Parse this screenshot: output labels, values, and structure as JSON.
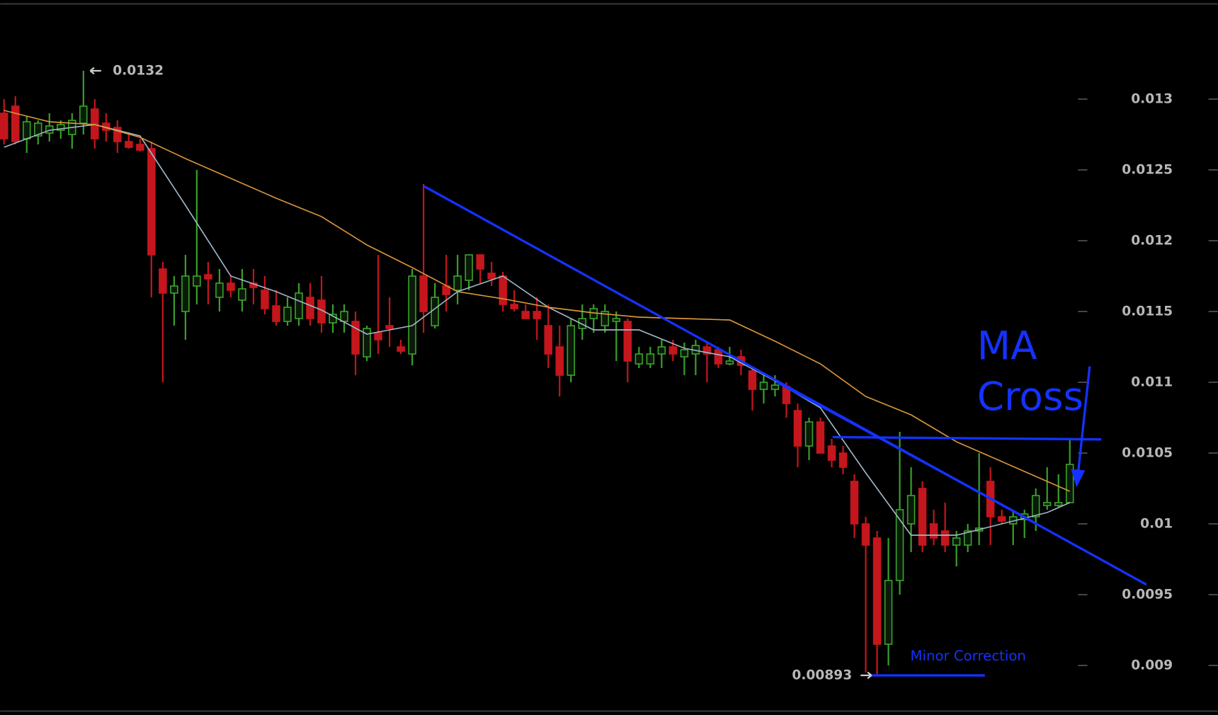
{
  "chart_data": {
    "type": "candlestick",
    "up_color": "#3aa02a",
    "down_color": "#c4161c",
    "open": [
      0.0129,
      0.01295,
      0.01272,
      0.01274,
      0.01276,
      0.01278,
      0.01275,
      0.01283,
      0.01293,
      0.01283,
      0.0128,
      0.0127,
      0.01268,
      0.01265,
      0.0118,
      0.01163,
      0.0115,
      0.01168,
      0.01176,
      0.0116,
      0.0117,
      0.01158,
      0.0117,
      0.01165,
      0.01154,
      0.01143,
      0.01145,
      0.0116,
      0.01158,
      0.01142,
      0.01143,
      0.01143,
      0.01118,
      0.01135,
      0.0114,
      0.01125,
      0.0112,
      0.01175,
      0.0114,
      0.01168,
      0.01165,
      0.01172,
      0.0119,
      0.01177,
      0.01175,
      0.01155,
      0.0115,
      0.0115,
      0.0114,
      0.01125,
      0.01105,
      0.01138,
      0.01145,
      0.0114,
      0.01143,
      0.01143,
      0.01113,
      0.01113,
      0.0112,
      0.01125,
      0.01118,
      0.0112,
      0.01125,
      0.01123,
      0.01113,
      0.01118,
      0.01108,
      0.01095,
      0.01095,
      0.01097,
      0.0108,
      0.01055,
      0.01072,
      0.01055,
      0.0105,
      0.0103,
      0.01,
      0.0099,
      0.00915,
      0.0096,
      0.01,
      0.01025,
      0.01,
      0.00995,
      0.00985,
      0.00985,
      0.00995,
      0.0103,
      0.01005,
      0.01,
      0.01003,
      0.01005,
      0.01013,
      0.01013,
      0.01015
    ],
    "high": [
      0.013,
      0.01302,
      0.01288,
      0.01285,
      0.0129,
      0.01285,
      0.0129,
      0.0132,
      0.013,
      0.0129,
      0.01285,
      0.01275,
      0.01272,
      0.0127,
      0.01185,
      0.01175,
      0.0119,
      0.0125,
      0.01185,
      0.0118,
      0.01175,
      0.0118,
      0.0118,
      0.01175,
      0.01165,
      0.0116,
      0.0117,
      0.0117,
      0.01175,
      0.01155,
      0.01155,
      0.0115,
      0.0114,
      0.0119,
      0.0116,
      0.0113,
      0.0118,
      0.0124,
      0.0117,
      0.0119,
      0.0119,
      0.0119,
      0.0119,
      0.01185,
      0.01178,
      0.01165,
      0.01155,
      0.0116,
      0.01155,
      0.0114,
      0.01145,
      0.01155,
      0.01155,
      0.01155,
      0.0115,
      0.01145,
      0.01125,
      0.01125,
      0.0113,
      0.0113,
      0.01128,
      0.0113,
      0.01128,
      0.01125,
      0.01125,
      0.01123,
      0.0111,
      0.01105,
      0.01105,
      0.011,
      0.01085,
      0.01075,
      0.01075,
      0.0106,
      0.01055,
      0.01035,
      0.01005,
      0.00995,
      0.0099,
      0.01065,
      0.0104,
      0.0103,
      0.0101,
      0.01015,
      0.00995,
      0.01,
      0.0105,
      0.0104,
      0.0101,
      0.0101,
      0.0101,
      0.01025,
      0.0104,
      0.01035,
      0.0106
    ],
    "low": [
      0.01268,
      0.01268,
      0.01262,
      0.01268,
      0.0127,
      0.01272,
      0.01265,
      0.01275,
      0.01265,
      0.0127,
      0.01262,
      0.01265,
      0.01263,
      0.0116,
      0.011,
      0.0114,
      0.0113,
      0.01155,
      0.01155,
      0.0115,
      0.0116,
      0.0115,
      0.01155,
      0.01148,
      0.0114,
      0.0114,
      0.0114,
      0.0114,
      0.01135,
      0.01135,
      0.01135,
      0.01105,
      0.01115,
      0.0112,
      0.01125,
      0.0112,
      0.01112,
      0.01135,
      0.01138,
      0.0115,
      0.01155,
      0.01165,
      0.0117,
      0.01168,
      0.0115,
      0.0115,
      0.01145,
      0.0113,
      0.0111,
      0.0109,
      0.011,
      0.0113,
      0.01135,
      0.01135,
      0.01115,
      0.011,
      0.0111,
      0.0111,
      0.0111,
      0.01115,
      0.01105,
      0.01105,
      0.011,
      0.0111,
      0.01112,
      0.01105,
      0.0108,
      0.01085,
      0.0109,
      0.01075,
      0.0104,
      0.01045,
      0.0105,
      0.0104,
      0.01035,
      0.0099,
      0.00895,
      0.00893,
      0.009,
      0.0095,
      0.0098,
      0.0098,
      0.00985,
      0.0098,
      0.0097,
      0.0098,
      0.00985,
      0.00985,
      0.01,
      0.00985,
      0.0099,
      0.00995,
      0.0101,
      0.01012,
      0.01015
    ],
    "close": [
      0.01272,
      0.0127,
      0.01284,
      0.01283,
      0.01281,
      0.01282,
      0.01285,
      0.01295,
      0.01272,
      0.01278,
      0.0127,
      0.01266,
      0.01264,
      0.0119,
      0.01163,
      0.01168,
      0.01175,
      0.01175,
      0.01173,
      0.0117,
      0.01165,
      0.01166,
      0.01167,
      0.01152,
      0.01143,
      0.01153,
      0.01163,
      0.01145,
      0.01142,
      0.01148,
      0.0115,
      0.0112,
      0.01138,
      0.0113,
      0.01138,
      0.01122,
      0.01175,
      0.0115,
      0.0116,
      0.01162,
      0.01175,
      0.0119,
      0.0118,
      0.01173,
      0.01155,
      0.01152,
      0.01145,
      0.01145,
      0.0112,
      0.01105,
      0.0114,
      0.01145,
      0.01152,
      0.0115,
      0.01145,
      0.01115,
      0.0112,
      0.0112,
      0.01125,
      0.0112,
      0.01123,
      0.01126,
      0.0112,
      0.01113,
      0.01115,
      0.01112,
      0.01095,
      0.011,
      0.01098,
      0.01085,
      0.01055,
      0.01072,
      0.0105,
      0.01045,
      0.0104,
      0.01,
      0.00985,
      0.00915,
      0.0096,
      0.0101,
      0.0102,
      0.00985,
      0.0099,
      0.00985,
      0.0099,
      0.00995,
      0.00997,
      0.01005,
      0.01002,
      0.01005,
      0.01007,
      0.0102,
      0.01015,
      0.01015,
      0.01042
    ],
    "moving_averages": [
      {
        "color": "#9fb6c8",
        "x": [
          0,
          4,
          8,
          12,
          16,
          20,
          24,
          28,
          32,
          36,
          40,
          44,
          48,
          52,
          56,
          60,
          64,
          68,
          72,
          76,
          80,
          84,
          88,
          92,
          94
        ],
        "values": [
          0.01266,
          0.01278,
          0.01282,
          0.01274,
          0.01225,
          0.01175,
          0.01164,
          0.01151,
          0.01134,
          0.0114,
          0.01164,
          0.01175,
          0.01153,
          0.01137,
          0.01137,
          0.01124,
          0.01118,
          0.01101,
          0.01082,
          0.01036,
          0.00992,
          0.00992,
          0.01,
          0.01008,
          0.01015
        ]
      },
      {
        "color": "#d8953a",
        "x": [
          0,
          4,
          8,
          12,
          16,
          20,
          24,
          28,
          32,
          36,
          40,
          44,
          48,
          52,
          56,
          60,
          64,
          68,
          72,
          76,
          80,
          84,
          88,
          92,
          94
        ],
        "values": [
          0.01292,
          0.01284,
          0.01282,
          0.01273,
          0.01258,
          0.01244,
          0.0123,
          0.01217,
          0.01197,
          0.01181,
          0.01164,
          0.01159,
          0.01153,
          0.01149,
          0.01146,
          0.01145,
          0.01144,
          0.01129,
          0.01113,
          0.0109,
          0.01077,
          0.01058,
          0.01044,
          0.0103,
          0.01023
        ]
      }
    ],
    "max_label": {
      "value": 0.0132,
      "label": "0.0132"
    },
    "min_label": {
      "value": 0.00893,
      "label": "0.00893"
    },
    "annotations": [
      "MA",
      "Cross",
      "Minor Correction"
    ],
    "ylim": [
      0.00865,
      0.0137
    ],
    "yticks": [
      0.009,
      0.0095,
      0.01,
      0.0105,
      0.011,
      0.0115,
      0.012,
      0.0125,
      0.013
    ]
  }
}
